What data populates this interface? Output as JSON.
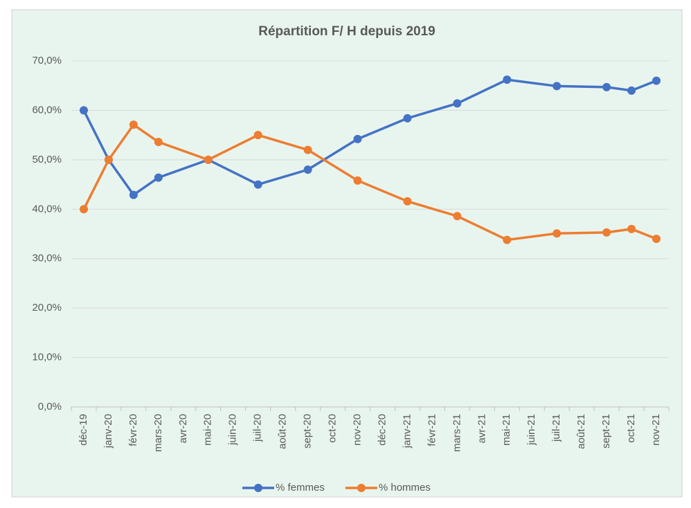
{
  "chart_data": {
    "type": "line",
    "title": "Répartition F/ H depuis 2019",
    "x": [
      "2019-12",
      "2020-01",
      "2020-02",
      "2020-03",
      "2020-05",
      "2020-07",
      "2020-09",
      "2020-11",
      "2021-01",
      "2021-03",
      "2021-05",
      "2021-07",
      "2021-09",
      "2021-10",
      "2021-11"
    ],
    "xticks": [
      {
        "value": "2019-12",
        "label": "déc-19"
      },
      {
        "value": "2020-01",
        "label": "janv-20"
      },
      {
        "value": "2020-02",
        "label": "févr-20"
      },
      {
        "value": "2020-03",
        "label": "mars-20"
      },
      {
        "value": "2020-04",
        "label": "avr-20"
      },
      {
        "value": "2020-05",
        "label": "mai-20"
      },
      {
        "value": "2020-06",
        "label": "juin-20"
      },
      {
        "value": "2020-07",
        "label": "juil-20"
      },
      {
        "value": "2020-08",
        "label": "août-20"
      },
      {
        "value": "2020-09",
        "label": "sept-20"
      },
      {
        "value": "2020-10",
        "label": "oct-20"
      },
      {
        "value": "2020-11",
        "label": "nov-20"
      },
      {
        "value": "2020-12",
        "label": "déc-20"
      },
      {
        "value": "2021-01",
        "label": "janv-21"
      },
      {
        "value": "2021-02",
        "label": "févr-21"
      },
      {
        "value": "2021-03",
        "label": "mars-21"
      },
      {
        "value": "2021-04",
        "label": "avr-21"
      },
      {
        "value": "2021-05",
        "label": "mai-21"
      },
      {
        "value": "2021-06",
        "label": "juin-21"
      },
      {
        "value": "2021-07",
        "label": "juil-21"
      },
      {
        "value": "2021-08",
        "label": "août-21"
      },
      {
        "value": "2021-09",
        "label": "sept-21"
      },
      {
        "value": "2021-10",
        "label": "oct-21"
      },
      {
        "value": "2021-11",
        "label": "nov-21"
      }
    ],
    "series": [
      {
        "name": "% femmes",
        "color": "#4472c4",
        "values": [
          60,
          50,
          42.9,
          46.4,
          50,
          45,
          48,
          54.2,
          58.4,
          61.4,
          66.2,
          64.9,
          64.7,
          64,
          66
        ]
      },
      {
        "name": "% hommes",
        "color": "#ed7d31",
        "values": [
          40,
          50,
          57.1,
          53.6,
          50,
          55,
          52,
          45.8,
          41.6,
          38.6,
          33.8,
          35.1,
          35.3,
          36,
          34
        ]
      }
    ],
    "ylim": [
      0,
      70
    ],
    "yticks": [
      {
        "value": 0,
        "label": "0,0%"
      },
      {
        "value": 10,
        "label": "10,0%"
      },
      {
        "value": 20,
        "label": "20,0%"
      },
      {
        "value": 30,
        "label": "30,0%"
      },
      {
        "value": 40,
        "label": "40,0%"
      },
      {
        "value": 50,
        "label": "50,0%"
      },
      {
        "value": 60,
        "label": "60,0%"
      },
      {
        "value": 70,
        "label": "70,0%"
      }
    ],
    "grid": true,
    "legend": "bottom"
  }
}
